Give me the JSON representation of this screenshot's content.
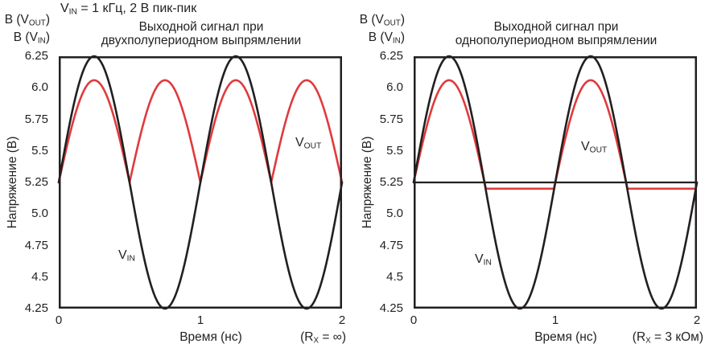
{
  "header": "V_{IN} = 1 кГц, 2 В пик-пик",
  "colors": {
    "line_black": "#231f20",
    "line_red": "#e03a3c",
    "text": "#231f20",
    "background": "#ffffff"
  },
  "chart_data": [
    {
      "type": "line",
      "title_lines": [
        "Выходной сигнал при",
        "двухполупериодном выпрямлении"
      ],
      "y_unit_labels": [
        "В (V_{OUT})",
        "В (V_{IN})"
      ],
      "ylabel": "Напряжение (В)",
      "xlabel": "Время (нс)",
      "condition": "(R_{X} = ∞)",
      "xlim": [
        0,
        2
      ],
      "ylim": [
        4.25,
        6.25
      ],
      "xticks": [
        "0",
        "1",
        "2"
      ],
      "yticks": [
        "6.25",
        "6.0",
        "5.75",
        "5.5",
        "5.25",
        "5.0",
        "4.75",
        "4.5",
        "4.25"
      ],
      "grid": false,
      "series": [
        {
          "id": "vout",
          "label": "V_{OUT}",
          "color": "#e03a3c",
          "model": "fullwave_rectified",
          "center_v": 5.25,
          "amplitude_v": 0.81,
          "period_ns": 1.0,
          "peak_v": 6.06,
          "min_v": 5.25,
          "peak_times_ns": [
            0.25,
            0.75,
            1.25,
            1.75
          ],
          "cusp_times_ns": [
            0,
            0.5,
            1.0,
            1.5,
            2.0
          ]
        },
        {
          "id": "vin",
          "label": "V_{IN}",
          "color": "#231f20",
          "model": "sine",
          "center_v": 5.25,
          "amplitude_v": 1.0,
          "period_ns": 1.0,
          "peak_v": 6.25,
          "min_v": 4.25,
          "peak_times_ns": [
            0.25,
            1.25
          ],
          "trough_times_ns": [
            0.75,
            1.75
          ]
        }
      ]
    },
    {
      "type": "line",
      "title_lines": [
        "Выходной сигнал при",
        "однополупериодном выпрямлении"
      ],
      "y_unit_labels": [
        "В (V_{OUT})",
        "В (V_{IN})"
      ],
      "ylabel": "Напряжение (В)",
      "xlabel": "Время (нс)",
      "condition": "(R_{X} = 3 кОм)",
      "xlim": [
        0,
        2
      ],
      "ylim": [
        4.25,
        6.25
      ],
      "xticks": [
        "0",
        "1",
        "2"
      ],
      "yticks": [
        "6.25",
        "6.0",
        "5.75",
        "5.5",
        "5.25",
        "5.0",
        "4.75",
        "4.5",
        "4.25"
      ],
      "grid": false,
      "baseline_v": 5.25,
      "series": [
        {
          "id": "vout",
          "label": "V_{OUT}",
          "color": "#e03a3c",
          "model": "halfwave_rectified",
          "center_v": 5.25,
          "amplitude_v": 0.81,
          "period_ns": 1.0,
          "clamp_v": 5.2,
          "peak_v": 6.06,
          "flat_v": 5.2,
          "peak_times_ns": [
            0.25,
            1.25
          ],
          "flat_intervals_ns": [
            [
              0.5,
              1.0
            ],
            [
              1.5,
              2.0
            ]
          ]
        },
        {
          "id": "vin",
          "label": "V_{IN}",
          "color": "#231f20",
          "model": "sine",
          "center_v": 5.25,
          "amplitude_v": 1.0,
          "period_ns": 1.0,
          "peak_v": 6.25,
          "min_v": 4.25,
          "peak_times_ns": [
            0.25,
            1.25
          ],
          "trough_times_ns": [
            0.75,
            1.75
          ]
        }
      ]
    }
  ]
}
